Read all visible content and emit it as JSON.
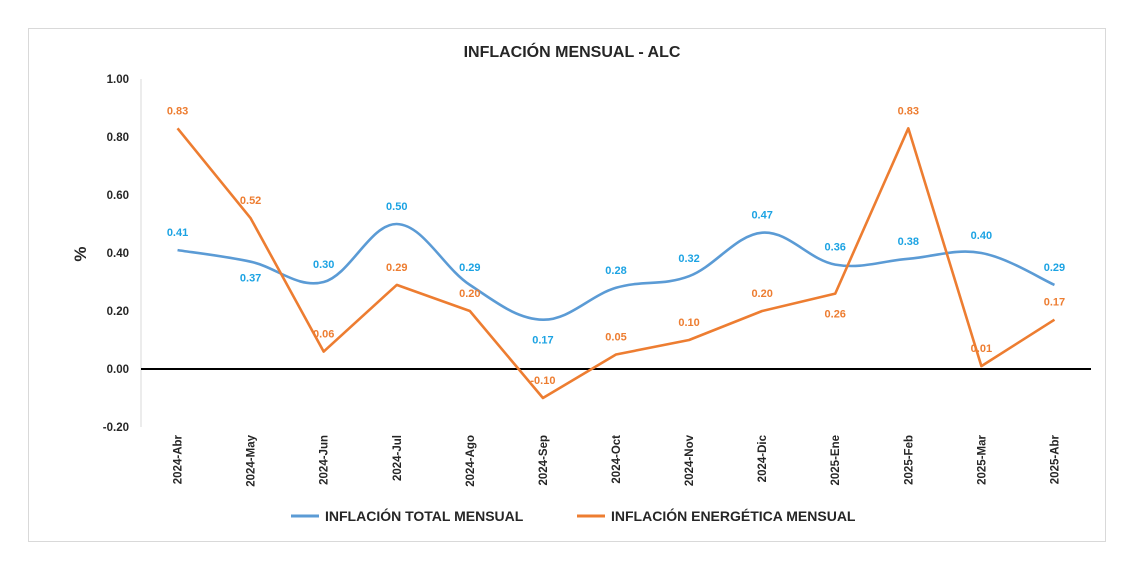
{
  "chart_data": {
    "type": "line",
    "title": "INFLACIÓN MENSUAL - ALC",
    "xlabel": "",
    "ylabel": "%",
    "ylim": [
      -0.2,
      1.0
    ],
    "yticks": [
      "1.00",
      "0.80",
      "0.60",
      "0.40",
      "0.20",
      "0.00",
      "-0.20"
    ],
    "grid": false,
    "legend_position": "bottom",
    "categories": [
      "2024-Abr",
      "2024-May",
      "2024-Jun",
      "2024-Jul",
      "2024-Ago",
      "2024-Sep",
      "2024-Oct",
      "2024-Nov",
      "2024-Dic",
      "2025-Ene",
      "2025-Feb",
      "2025-Mar",
      "2025-Abr"
    ],
    "series": [
      {
        "name": "INFLACIÓN TOTAL MENSUAL",
        "color": "#5B9BD5",
        "label_color": "#1CA3E3",
        "smooth": true,
        "values": [
          0.41,
          0.37,
          0.3,
          0.5,
          0.29,
          0.17,
          0.28,
          0.32,
          0.47,
          0.36,
          0.38,
          0.4,
          0.29
        ],
        "labels": [
          "0.41",
          "0.37",
          "0.30",
          "0.50",
          "0.29",
          "0.17",
          "0.28",
          "0.32",
          "0.47",
          "0.36",
          "0.38",
          "0.40",
          "0.29"
        ]
      },
      {
        "name": "INFLACIÓN ENERGÉTICA MENSUAL",
        "color": "#ED7D31",
        "label_color": "#ED7D31",
        "smooth": false,
        "values": [
          0.83,
          0.52,
          0.06,
          0.29,
          0.2,
          -0.1,
          0.05,
          0.1,
          0.2,
          0.26,
          0.83,
          0.01,
          0.17
        ],
        "labels": [
          "0.83",
          "0.52",
          "0.06",
          "0.29",
          "0.20",
          "-0.10",
          "0.05",
          "0.10",
          "0.20",
          "0.26",
          "0.83",
          "0.01",
          "0.17"
        ]
      }
    ]
  }
}
